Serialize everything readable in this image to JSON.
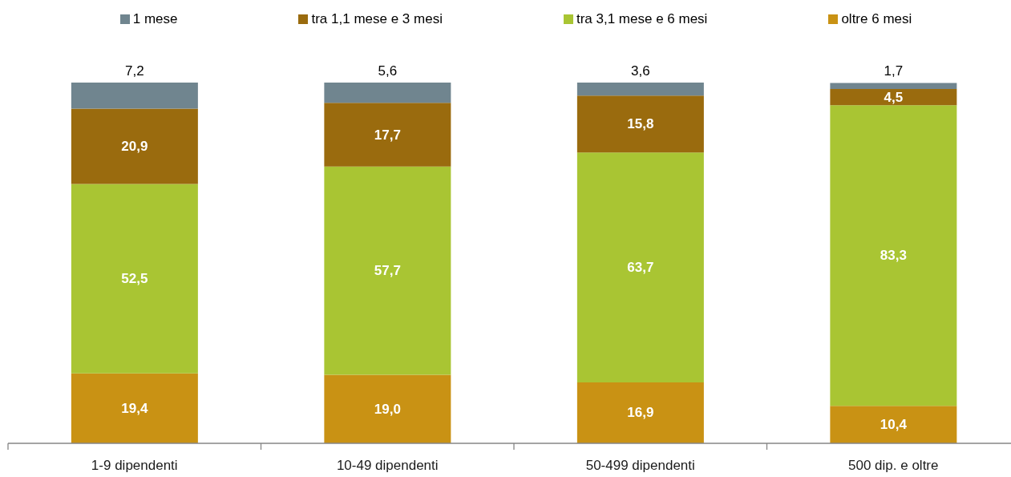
{
  "chart_data": {
    "type": "bar",
    "stacked": true,
    "legend": "top",
    "categories": [
      "1-9 dipendenti",
      "10-49 dipendenti",
      "50-499 dipendenti",
      "500 dip. e oltre"
    ],
    "series": [
      {
        "name": "oltre 6 mesi",
        "color": "#c99214",
        "values": [
          19.4,
          19.0,
          16.9,
          10.4
        ],
        "value_labels": [
          "19,4",
          "19,0",
          "16,9",
          "10,4"
        ]
      },
      {
        "name": "tra 3,1 mese e 6 mesi",
        "color": "#a9c533",
        "values": [
          52.5,
          57.7,
          63.7,
          83.3
        ],
        "value_labels": [
          "52,5",
          "57,7",
          "63,7",
          "83,3"
        ]
      },
      {
        "name": "tra 1,1 mese e 3 mesi",
        "color": "#9a6b0e",
        "values": [
          20.9,
          17.7,
          15.8,
          4.5
        ],
        "value_labels": [
          "20,9",
          "17,7",
          "15,8",
          "4,5"
        ]
      },
      {
        "name": "1 mese",
        "color": "#70858f",
        "values": [
          7.2,
          5.6,
          3.6,
          1.7
        ],
        "value_labels": [
          "7,2",
          "5,6",
          "3,6",
          "1,7"
        ]
      }
    ]
  }
}
